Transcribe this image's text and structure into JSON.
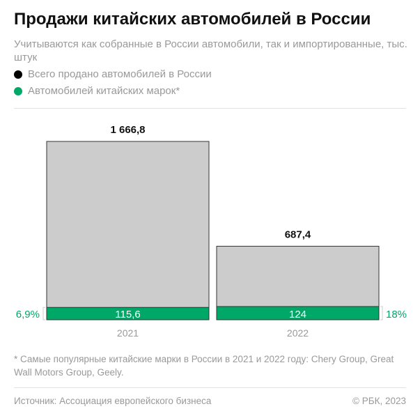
{
  "header": {
    "title": "Продажи китайских автомобилей в России",
    "subtitle": "Учитываются как собранные в России автомобили, так и импортированные, тыс. штук"
  },
  "chart_data": {
    "type": "bar",
    "categories": [
      "2021",
      "2022"
    ],
    "series": [
      {
        "name": "Всего продано автомобилей в России",
        "values": [
          1666.8,
          687.4
        ],
        "labels": [
          "1 666,8",
          "687,4"
        ],
        "color": "#cccccc"
      },
      {
        "name": "Автомобилей китайских марок*",
        "values": [
          115.6,
          124
        ],
        "labels": [
          "115,6",
          "124"
        ],
        "color": "#00a868"
      }
    ],
    "shares": [
      "6,9%",
      "18%"
    ],
    "ylim": [
      0,
      1666.8
    ],
    "grid": false,
    "legend": "top-left"
  },
  "footnote": "* Самые популярные китайские марки в России в 2021 и 2022 году: Chery Group, Great Wall Motors Group, Geely.",
  "footer": {
    "source": "Источник: Ассоциация европейского бизнеса",
    "copyright": "© РБК, 2023"
  }
}
